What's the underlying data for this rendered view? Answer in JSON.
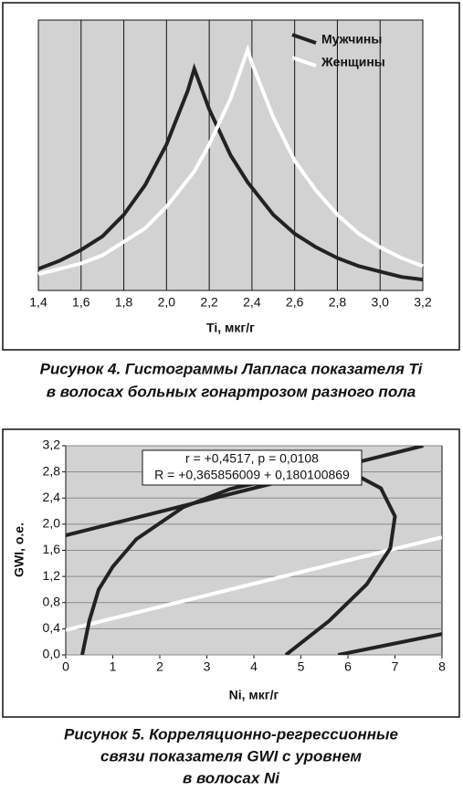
{
  "chart_data": [
    {
      "type": "line",
      "xlabel": "Ti, мкг/г",
      "caption": [
        "Рисунок 4. Гистограммы Лапласа показателя Ti",
        "в волосах больных гонартрозом разного пола"
      ],
      "x": [
        1.4,
        1.5,
        1.6,
        1.7,
        1.8,
        1.9,
        2.0,
        2.1,
        2.13,
        2.2,
        2.3,
        2.38,
        2.4,
        2.5,
        2.6,
        2.7,
        2.8,
        2.9,
        3.0,
        3.1,
        3.2
      ],
      "series": [
        {
          "name": "Мужчины",
          "color": "#222222",
          "values": [
            0.08,
            0.11,
            0.15,
            0.2,
            0.28,
            0.39,
            0.54,
            0.74,
            0.82,
            0.67,
            0.5,
            0.4,
            0.38,
            0.28,
            0.21,
            0.16,
            0.12,
            0.09,
            0.07,
            0.05,
            0.04
          ]
        },
        {
          "name": "Женщины",
          "color": "#ffffff",
          "values": [
            0.06,
            0.08,
            0.1,
            0.13,
            0.18,
            0.23,
            0.31,
            0.41,
            0.44,
            0.54,
            0.71,
            0.89,
            0.84,
            0.64,
            0.48,
            0.37,
            0.28,
            0.21,
            0.16,
            0.12,
            0.09
          ]
        }
      ],
      "xlim": [
        1.4,
        3.2
      ],
      "xticks": [
        {
          "value": 1.4,
          "label": "1,4"
        },
        {
          "value": 1.6,
          "label": "1,6"
        },
        {
          "value": 1.8,
          "label": "1,8"
        },
        {
          "value": 2.0,
          "label": "2,0"
        },
        {
          "value": 2.2,
          "label": "2,2"
        },
        {
          "value": 2.4,
          "label": "2,4"
        },
        {
          "value": 2.6,
          "label": "2,6"
        },
        {
          "value": 2.8,
          "label": "2,8"
        },
        {
          "value": 3.0,
          "label": "3,0"
        },
        {
          "value": 3.2,
          "label": "3,2"
        }
      ],
      "ylim": [
        0,
        1
      ],
      "grid": "x",
      "legend": "upper right"
    },
    {
      "type": "line",
      "xlabel": "Ni, мкг/г",
      "ylabel": "GWI, о.е.",
      "caption": [
        "Рисунок 5. Корреляционно-регрессионные",
        "связи показателя GWI с уровнем",
        "в волосах Ni"
      ],
      "annotations": [
        "r = +0,4517, p = 0,0108",
        "R = +0,365856009 + 0,180100869"
      ],
      "series": [
        {
          "color": "#222222",
          "x": [
            0,
            7.6
          ],
          "values": [
            1.83,
            3.2
          ]
        },
        {
          "color": "#ffffff",
          "x": [
            0,
            8
          ],
          "values": [
            0.38,
            1.8
          ]
        },
        {
          "color": "#222222",
          "x": [
            0.35,
            0.5,
            0.7,
            1.0,
            1.5,
            2.5,
            3.5,
            4.8,
            6.1,
            6.7,
            7.0,
            6.9,
            6.4,
            5.6,
            4.68
          ],
          "values": [
            0,
            0.52,
            1.0,
            1.35,
            1.77,
            2.26,
            2.54,
            2.75,
            2.78,
            2.55,
            2.12,
            1.63,
            1.08,
            0.52,
            0
          ]
        },
        {
          "color": "#222222",
          "x": [
            5.79,
            8
          ],
          "values": [
            0,
            0.32
          ]
        }
      ],
      "xlim": [
        0,
        8
      ],
      "xticks": [
        0,
        1,
        2,
        3,
        4,
        5,
        6,
        7,
        8
      ],
      "ylim": [
        0,
        3.2
      ],
      "yticks": [
        {
          "value": 0,
          "label": "0,0"
        },
        {
          "value": 0.4,
          "label": "0,4"
        },
        {
          "value": 0.8,
          "label": "0,8"
        },
        {
          "value": 1.2,
          "label": "1,2"
        },
        {
          "value": 1.6,
          "label": "1,6"
        },
        {
          "value": 2.0,
          "label": "2,0"
        },
        {
          "value": 2.4,
          "label": "2,4"
        },
        {
          "value": 2.8,
          "label": "2,8"
        },
        {
          "value": 3.2,
          "label": "3,2"
        }
      ],
      "grid": "y"
    }
  ]
}
